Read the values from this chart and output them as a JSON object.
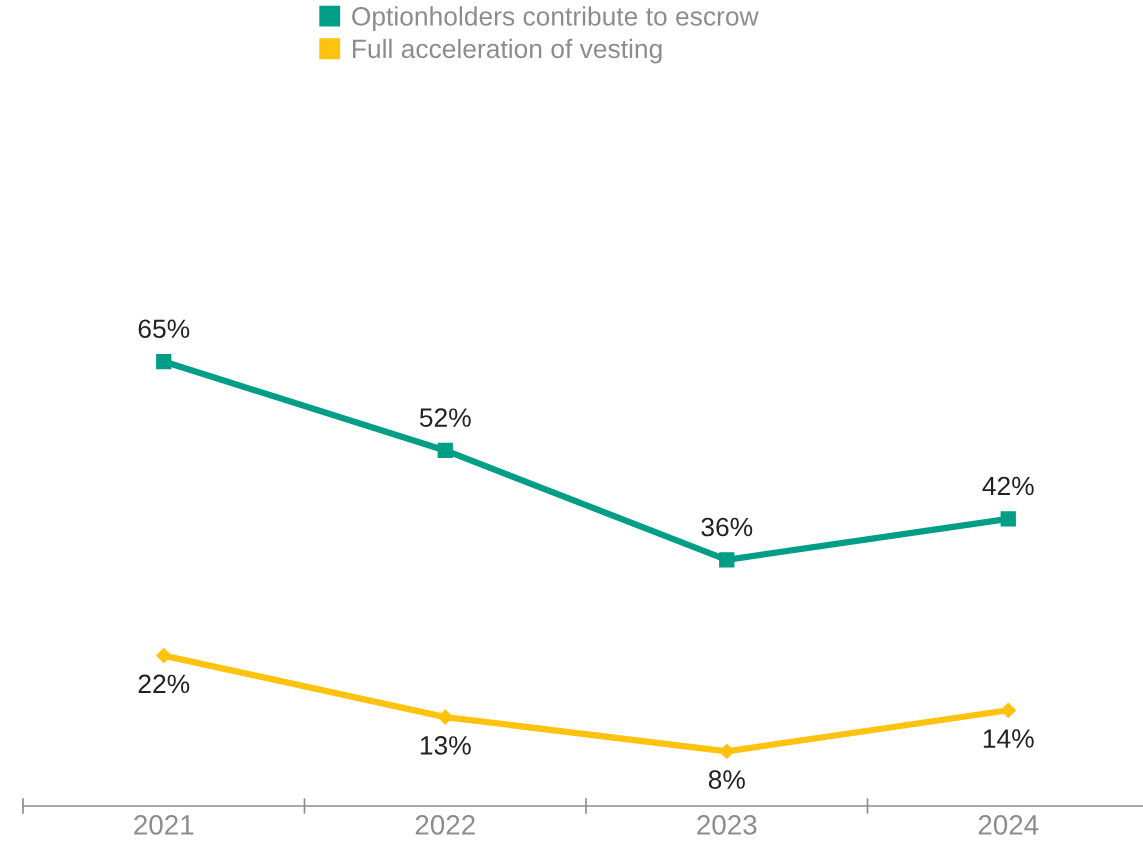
{
  "chart_data": {
    "type": "line",
    "categories": [
      "2021",
      "2022",
      "2023",
      "2024"
    ],
    "series": [
      {
        "name": "Optionholders contribute to escrow",
        "color": "#009e87",
        "marker": "square",
        "values": [
          65,
          52,
          36,
          42
        ],
        "value_labels": [
          "65%",
          "52%",
          "36%",
          "42%"
        ]
      },
      {
        "name": "Full acceleration of vesting",
        "color": "#ffc20e",
        "marker": "diamond",
        "values": [
          22,
          13,
          8,
          14
        ],
        "value_labels": [
          "22%",
          "13%",
          "8%",
          "14%"
        ]
      }
    ],
    "legend": "top",
    "tick_labels": "x",
    "line_style": "solid"
  }
}
